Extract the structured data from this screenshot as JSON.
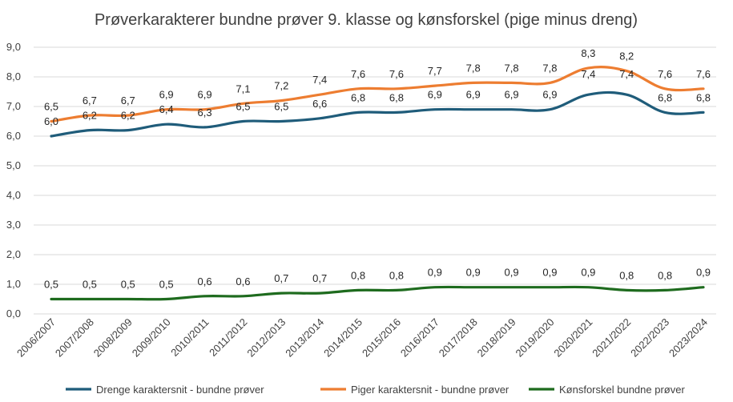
{
  "chart_data": {
    "type": "line",
    "title": "Prøverkarakterer bundne prøver 9. klasse og kønsforskel (pige minus dreng)",
    "xlabel": "",
    "ylabel": "",
    "ylim": [
      0,
      9
    ],
    "yticks": [
      "0,0",
      "1,0",
      "2,0",
      "3,0",
      "4,0",
      "5,0",
      "6,0",
      "7,0",
      "8,0",
      "9,0"
    ],
    "grid": true,
    "legend_position": "bottom",
    "categories": [
      "2006/2007",
      "2007/2008",
      "2008/2009",
      "2009/2010",
      "2010/2011",
      "2011/2012",
      "2012/2013",
      "2013/2014",
      "2014/2015",
      "2015/2016",
      "2016/2017",
      "2017/2018",
      "2018/2019",
      "2019/2020",
      "2020/2021",
      "2021/2022",
      "2022/2023",
      "2023/2024"
    ],
    "series": [
      {
        "name": "Drenge karaktersnit - bundne prøver",
        "color": "#1f5c7a",
        "values": [
          6.0,
          6.2,
          6.2,
          6.4,
          6.3,
          6.5,
          6.5,
          6.6,
          6.8,
          6.8,
          6.9,
          6.9,
          6.9,
          6.9,
          7.4,
          7.4,
          6.8,
          6.8
        ],
        "labels": [
          "6,0",
          "6,2",
          "6,2",
          "6,4",
          "6,3",
          "6,5",
          "6,5",
          "6,6",
          "6,8",
          "6,8",
          "6,9",
          "6,9",
          "6,9",
          "6,9",
          "7,4",
          "7,4",
          "6,8",
          "6,8"
        ],
        "label_side": "above"
      },
      {
        "name": "Piger karaktersnit - bundne prøver",
        "color": "#ed7d31",
        "values": [
          6.5,
          6.7,
          6.7,
          6.9,
          6.9,
          7.1,
          7.2,
          7.4,
          7.6,
          7.6,
          7.7,
          7.8,
          7.8,
          7.8,
          8.3,
          8.2,
          7.6,
          7.6
        ],
        "labels": [
          "6,5",
          "6,7",
          "6,7",
          "6,9",
          "6,9",
          "7,1",
          "7,2",
          "7,4",
          "7,6",
          "7,6",
          "7,7",
          "7,8",
          "7,8",
          "7,8",
          "8,3",
          "8,2",
          "7,6",
          "7,6"
        ],
        "label_side": "above"
      },
      {
        "name": "Kønsforskel bundne prøver",
        "color": "#1e6b1e",
        "values": [
          0.5,
          0.5,
          0.5,
          0.5,
          0.6,
          0.6,
          0.7,
          0.7,
          0.8,
          0.8,
          0.9,
          0.9,
          0.9,
          0.9,
          0.9,
          0.8,
          0.8,
          0.9
        ],
        "labels": [
          "0,5",
          "0,5",
          "0,5",
          "0,5",
          "0,6",
          "0,6",
          "0,7",
          "0,7",
          "0,8",
          "0,8",
          "0,9",
          "0,9",
          "0,9",
          "0,9",
          "0,9",
          "0,8",
          "0,8",
          "0,9"
        ],
        "label_side": "above"
      }
    ]
  }
}
